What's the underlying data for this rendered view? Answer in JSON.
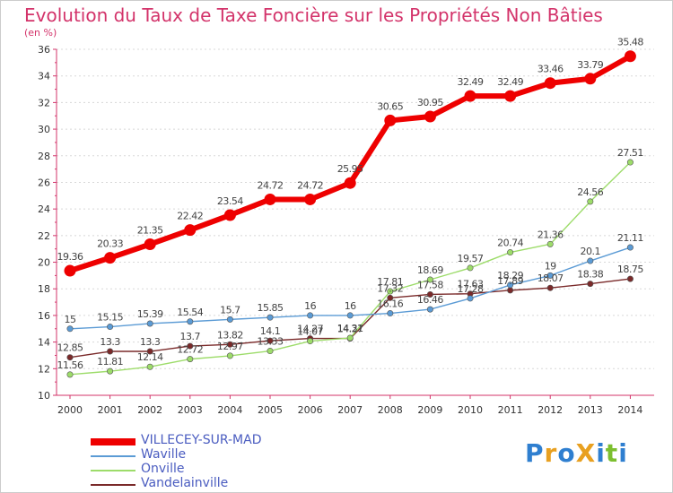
{
  "header": {
    "title": "Evolution du Taux de Taxe Foncière sur les Propriétés Non Bâties",
    "subtitle": "(en %)"
  },
  "logo": {
    "text": "ProXiti",
    "letters": [
      "P",
      "r",
      "o",
      "X",
      "i",
      "t",
      "i"
    ],
    "colors": [
      "#2f7fd0",
      "#e8a020",
      "#2f7fd0",
      "#e8a020",
      "#2f7fd0",
      "#7cbf2f",
      "#2f7fd0"
    ]
  },
  "chart_data": {
    "type": "line",
    "x": [
      "2000",
      "2001",
      "2002",
      "2003",
      "2004",
      "2005",
      "2006",
      "2007",
      "2008",
      "2009",
      "2010",
      "2011",
      "2012",
      "2013",
      "2014"
    ],
    "ylim": [
      10,
      36
    ],
    "yticks": [
      "10",
      "12",
      "14",
      "16",
      "18",
      "20",
      "22",
      "24",
      "26",
      "28",
      "30",
      "32",
      "34",
      "36"
    ],
    "grid": "horizontal",
    "legend_position": "bottom-left",
    "series": [
      {
        "name": "VILLECEY-SUR-MAD",
        "color": "#ee0000",
        "values": [
          19.36,
          20.33,
          21.35,
          22.42,
          23.54,
          24.72,
          24.72,
          25.95,
          30.65,
          30.95,
          32.49,
          32.49,
          33.46,
          33.79,
          35.48
        ],
        "labels": [
          "19.36",
          "20.33",
          "21.35",
          "22.42",
          "23.54",
          "24.72",
          "24.72",
          "25.95",
          "30.65",
          "30.95",
          "32.49",
          "32.49",
          "33.46",
          "33.79",
          "35.48"
        ]
      },
      {
        "name": "Waville",
        "color": "#5b9bd5",
        "values": [
          15,
          15.15,
          15.39,
          15.54,
          15.7,
          15.85,
          16,
          16,
          16.16,
          16.46,
          17.28,
          18.29,
          19,
          20.1,
          21.11
        ],
        "labels": [
          "15",
          "15.15",
          "15.39",
          "15.54",
          "15.7",
          "15.85",
          "16",
          "16",
          "16.16",
          "16.46",
          "17.28",
          "18.29",
          "19",
          "20.1",
          "21.11"
        ]
      },
      {
        "name": "Onville",
        "color": "#9ddc6a",
        "values": [
          11.56,
          11.81,
          12.14,
          12.72,
          12.97,
          13.33,
          14.07,
          14.31,
          17.81,
          18.69,
          19.57,
          20.74,
          21.36,
          24.56,
          27.51
        ],
        "labels": [
          "11.56",
          "11.81",
          "12.14",
          "12.72",
          "12.97",
          "13.33",
          "14.07",
          "14.31",
          "17.81",
          "18.69",
          "19.57",
          "20.74",
          "21.36",
          "24.56",
          "27.51"
        ]
      },
      {
        "name": "Vandelainville",
        "color": "#7a2a2a",
        "values": [
          12.85,
          13.3,
          13.3,
          13.7,
          13.82,
          14.1,
          14.27,
          14.27,
          17.32,
          17.58,
          17.63,
          17.89,
          18.07,
          18.38,
          18.75
        ],
        "labels": [
          "12.85",
          "13.3",
          "13.3",
          "13.7",
          "13.82",
          "14.1",
          "14.27",
          "14.27",
          "17.32",
          "17.58",
          "17.63",
          "17.89",
          "18.07",
          "18.38",
          "18.75"
        ]
      }
    ]
  }
}
